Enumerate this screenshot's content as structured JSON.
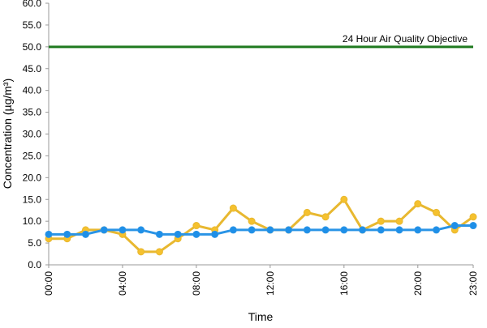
{
  "chart_data": {
    "type": "line",
    "title": "",
    "xlabel": "Time",
    "ylabel": "Concentration (µg/m³)",
    "ylim": [
      0,
      60
    ],
    "y_ticks": [
      "0.0",
      "5.0",
      "10.0",
      "15.0",
      "20.0",
      "25.0",
      "30.0",
      "35.0",
      "40.0",
      "45.0",
      "50.0",
      "55.0",
      "60.0"
    ],
    "x_tick_labels": [
      "00:00",
      "04:00",
      "08:00",
      "12:00",
      "16:00",
      "20:00",
      "23:00"
    ],
    "x_tick_hours": [
      0,
      4,
      8,
      12,
      16,
      20,
      23
    ],
    "x": [
      0,
      1,
      2,
      3,
      4,
      5,
      6,
      7,
      8,
      9,
      10,
      11,
      12,
      13,
      14,
      15,
      16,
      17,
      18,
      19,
      20,
      21,
      22,
      23
    ],
    "grid": false,
    "legend": "none",
    "series": [
      {
        "color": "#f5c12e",
        "line_color": "#e8b830",
        "values": [
          6,
          6,
          8,
          8,
          7,
          3,
          3,
          6,
          9,
          8,
          13,
          10,
          8,
          8,
          12,
          11,
          15,
          8,
          10,
          10,
          14,
          12,
          8,
          11
        ]
      },
      {
        "color": "#1e8fe8",
        "line_color": "#2a94e6",
        "values": [
          7,
          7,
          7,
          8,
          8,
          8,
          7,
          7,
          7,
          7,
          8,
          8,
          8,
          8,
          8,
          8,
          8,
          8,
          8,
          8,
          8,
          8,
          9,
          9
        ]
      }
    ],
    "reference_line": {
      "value": 50,
      "label": "24 Hour Air Quality Objective",
      "color": "#1f7a1f"
    }
  }
}
